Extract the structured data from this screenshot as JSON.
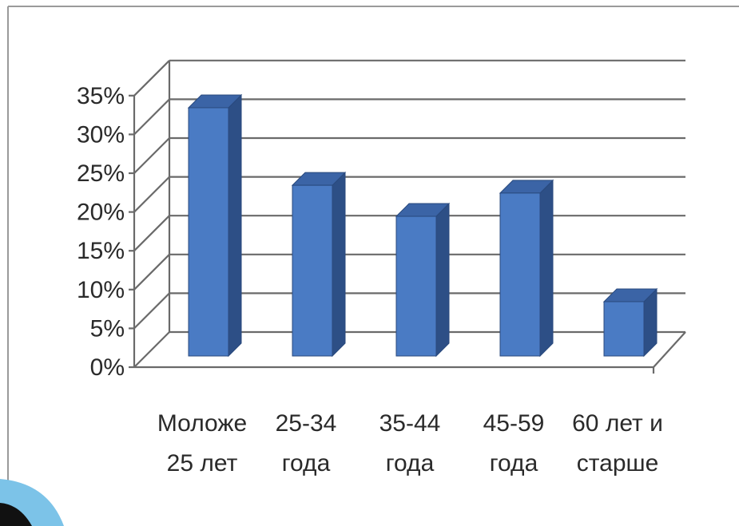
{
  "chart_data": {
    "type": "bar",
    "style": "3d-column",
    "categories": [
      [
        "Моложе",
        "25 лет"
      ],
      [
        "25-34",
        "года"
      ],
      [
        "35-44",
        "года"
      ],
      [
        "45-59",
        "года"
      ],
      [
        "60 лет и",
        "старше"
      ]
    ],
    "values": [
      32,
      22,
      18,
      21,
      7
    ],
    "yticks": [
      "0%",
      "5%",
      "10%",
      "15%",
      "20%",
      "25%",
      "30%",
      "35%"
    ],
    "ylim": [
      0,
      35
    ],
    "grid": true,
    "legend": "none",
    "title": "",
    "xlabel": "",
    "ylabel": "",
    "colors": {
      "bar_front": "#4a7bc4",
      "bar_side": "#2d4f86",
      "bar_top": "#3b64a6",
      "bar_edge": "#2a4a7e"
    }
  }
}
